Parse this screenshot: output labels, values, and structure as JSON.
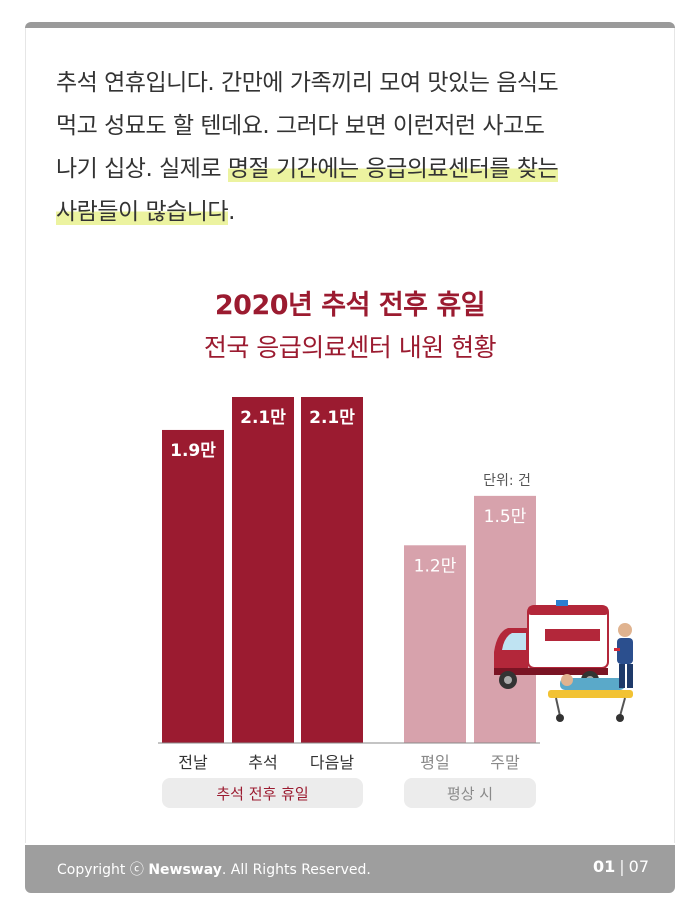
{
  "intro": {
    "line1": "추석 연휴입니다. 간만에 가족끼리 모여 맛있는 음식도",
    "line2": "먹고 성묘도 할 텐데요. 그러다 보면 이런저런 사고도",
    "line3_plain": "나기 십상. 실제로 ",
    "line3_highlight": "명절 기간에는 응급의료센터를 찾는",
    "line4_highlight": "사람들이 많습니다",
    "line4_end": "."
  },
  "chart_data": {
    "type": "bar",
    "title": "2020년 추석 전후 휴일",
    "subtitle": "전국 응급의료센터 내원 현황",
    "unit_label": "단위: 건",
    "categories": [
      "전날",
      "추석",
      "다음날",
      "평일",
      "주말"
    ],
    "values": [
      19000,
      21000,
      21000,
      12000,
      15000
    ],
    "value_labels": [
      "1.9만",
      "2.1만",
      "2.1만",
      "1.2만",
      "1.5만"
    ],
    "groups": [
      {
        "label": "추석 전후 휴일",
        "categories": [
          "전날",
          "추석",
          "다음날"
        ],
        "color": "#9b1b30"
      },
      {
        "label": "평상 시",
        "categories": [
          "평일",
          "주말"
        ],
        "color": "#d7a2ac"
      }
    ],
    "ylim": [
      0,
      21000
    ]
  },
  "footer": {
    "copyright_prefix": "Copyright ⓒ ",
    "brand": "Newsway",
    "copyright_suffix": ". All Rights Reserved.",
    "page_current": "01",
    "page_separator": "|",
    "page_total": "07"
  }
}
